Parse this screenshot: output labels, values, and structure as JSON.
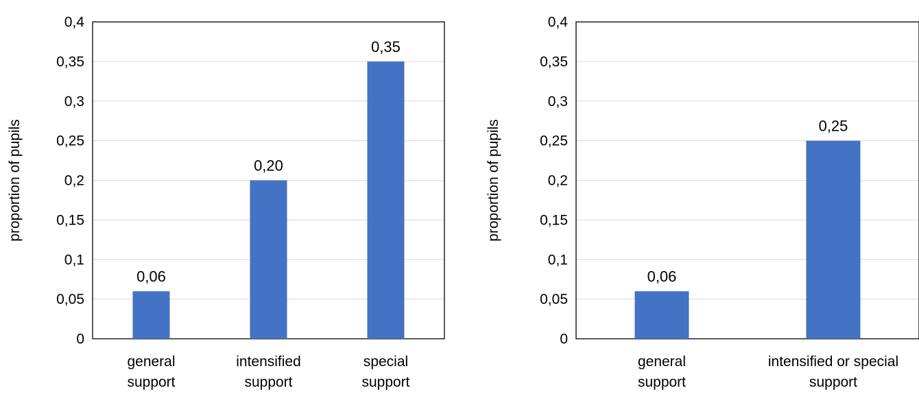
{
  "chart_data": [
    {
      "type": "bar",
      "categories": [
        [
          "general",
          "support"
        ],
        [
          "intensified",
          "support"
        ],
        [
          "special",
          "support"
        ]
      ],
      "values": [
        0.06,
        0.2,
        0.35
      ],
      "data_labels": [
        "0,06",
        "0,20",
        "0,35"
      ],
      "ylabel": "proportion of pupils",
      "xlabel": "",
      "ylim": [
        0,
        0.4
      ],
      "yticks": [
        "0",
        "0,05",
        "0,1",
        "0,15",
        "0,2",
        "0,25",
        "0,3",
        "0,35",
        "0,4"
      ],
      "grid": true,
      "legend": "none",
      "bar_color": "#4472c4"
    },
    {
      "type": "bar",
      "categories": [
        [
          "general",
          "support"
        ],
        [
          "intensified or special",
          "support"
        ]
      ],
      "values": [
        0.06,
        0.25
      ],
      "data_labels": [
        "0,06",
        "0,25"
      ],
      "ylabel": "proportion of pupils",
      "xlabel": "",
      "ylim": [
        0,
        0.4
      ],
      "yticks": [
        "0",
        "0,05",
        "0,1",
        "0,15",
        "0,2",
        "0,25",
        "0,3",
        "0,35",
        "0,4"
      ],
      "grid": true,
      "legend": "none",
      "bar_color": "#4472c4"
    }
  ]
}
